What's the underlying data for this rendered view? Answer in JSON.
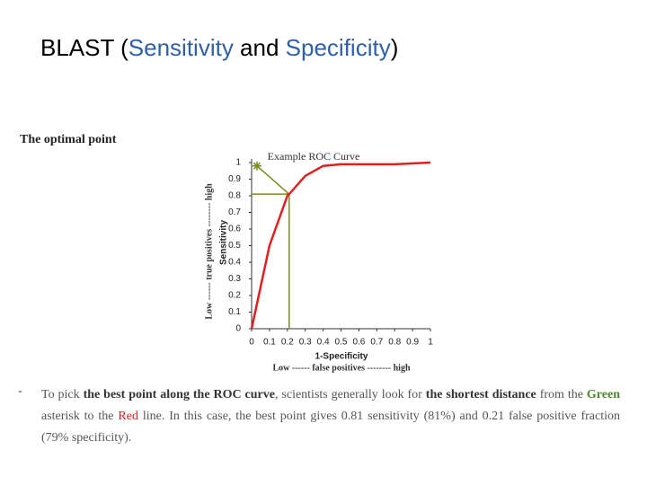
{
  "slide_title": [
    {
      "text": "BLAST (",
      "color": "#000000"
    },
    {
      "text": "Sensitivity",
      "color": "#2f5fa8"
    },
    {
      "text": " and ",
      "color": "#000000"
    },
    {
      "text": "Specificity",
      "color": "#2f5fa8"
    },
    {
      "text": ")",
      "color": "#000000"
    }
  ],
  "chart_data": {
    "type": "line",
    "heading": "The optimal point",
    "title": "Example ROC Curve",
    "xlabel": "1-Specificity",
    "xlabel_outer": "Low ------ false positives -------- high",
    "ylabel": "Sensitivity",
    "ylabel_outer": "Low ------ true positives -------- high",
    "xlim": [
      0,
      1
    ],
    "ylim": [
      0,
      1
    ],
    "xticks": [
      0,
      0.1,
      0.2,
      0.3,
      0.4,
      0.5,
      0.6,
      0.7,
      0.8,
      0.9,
      1
    ],
    "yticks": [
      0,
      0.1,
      0.2,
      0.3,
      0.4,
      0.5,
      0.6,
      0.7,
      0.8,
      0.9,
      1
    ],
    "series": [
      {
        "color": "#e02020",
        "x": [
          0,
          0.05,
          0.1,
          0.15,
          0.2,
          0.21,
          0.3,
          0.4,
          0.5,
          0.6,
          0.8,
          1
        ],
        "values": [
          0,
          0.25,
          0.5,
          0.65,
          0.8,
          0.81,
          0.92,
          0.98,
          0.99,
          0.99,
          0.99,
          1
        ]
      }
    ],
    "optimal_point": {
      "x": 0.21,
      "y": 0.81
    },
    "asterisk": {
      "x": 0.03,
      "y": 0.98,
      "color": "#7a8a20"
    }
  },
  "caption": {
    "bullet": "-",
    "segments": [
      {
        "text": "To pick ",
        "style": "plain"
      },
      {
        "text": "the best point along the ROC curve",
        "style": "bold"
      },
      {
        "text": ", scientists generally look for ",
        "style": "plain"
      },
      {
        "text": "the shortest distance",
        "style": "bold"
      },
      {
        "text": " from the ",
        "style": "plain"
      },
      {
        "text": "Green",
        "style": "green"
      },
      {
        "text": " asterisk to the ",
        "style": "plain"
      },
      {
        "text": "Red",
        "style": "red"
      },
      {
        "text": " line. In this case, the best point gives 0.81 sensitivity (81%) and 0.21 false positive fraction (79% specificity).",
        "style": "plain"
      }
    ]
  }
}
